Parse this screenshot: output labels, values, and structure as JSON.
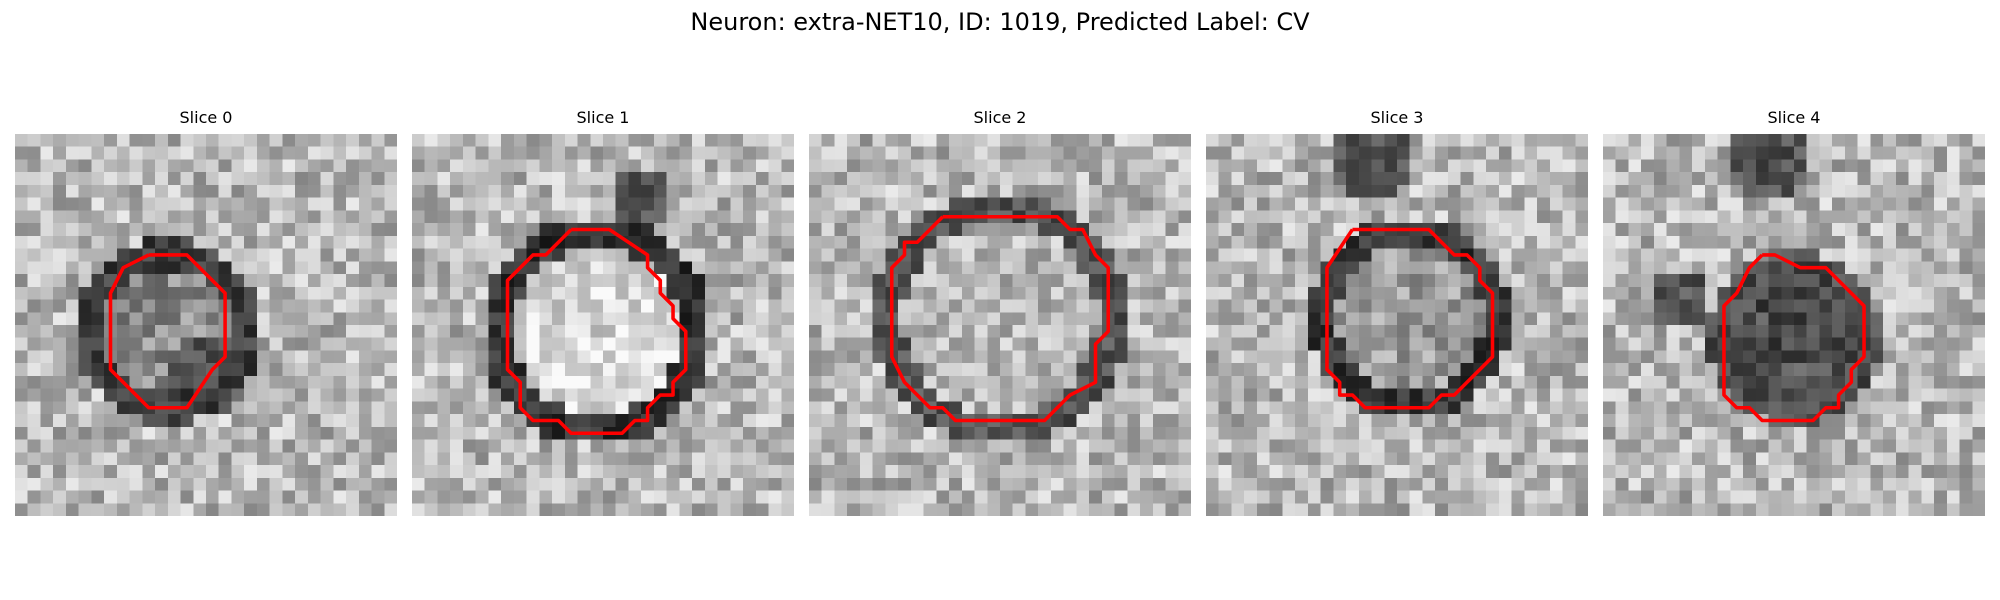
{
  "figure": {
    "title": "Neuron: extra-NET10, ID: 1019, Predicted Label: CV"
  },
  "contour_color": "#ff0000",
  "panels": [
    {
      "title": "Slice 0",
      "contour": [
        [
          10.5,
          9.5
        ],
        [
          13.5,
          9.5
        ],
        [
          15.5,
          11.5
        ],
        [
          16.5,
          12.5
        ],
        [
          16.5,
          17.5
        ],
        [
          15.5,
          18.5
        ],
        [
          13.5,
          21.5
        ],
        [
          10.5,
          21.5
        ],
        [
          8.5,
          19.5
        ],
        [
          7.5,
          18.5
        ],
        [
          7.5,
          12.5
        ],
        [
          8.5,
          10.5
        ]
      ]
    },
    {
      "title": "Slice 1",
      "contour": [
        [
          12.5,
          7.5
        ],
        [
          15.5,
          7.5
        ],
        [
          18.5,
          9.5
        ],
        [
          18.5,
          10.5
        ],
        [
          19.5,
          11.5
        ],
        [
          19.5,
          12.5
        ],
        [
          20.5,
          13.5
        ],
        [
          20.5,
          14.5
        ],
        [
          21.5,
          15.5
        ],
        [
          21.5,
          18.5
        ],
        [
          20.5,
          19.5
        ],
        [
          20.5,
          20.5
        ],
        [
          19.5,
          20.5
        ],
        [
          18.5,
          21.5
        ],
        [
          18.5,
          22.5
        ],
        [
          17.5,
          22.5
        ],
        [
          16.5,
          23.5
        ],
        [
          12.5,
          23.5
        ],
        [
          11.5,
          22.5
        ],
        [
          9.5,
          22.5
        ],
        [
          8.5,
          21.5
        ],
        [
          8.5,
          19.5
        ],
        [
          7.5,
          18.5
        ],
        [
          7.5,
          11.5
        ],
        [
          9.5,
          9.5
        ],
        [
          10.5,
          9.5
        ],
        [
          11.5,
          8.5
        ]
      ]
    },
    {
      "title": "Slice 2",
      "contour": [
        [
          10.5,
          6.5
        ],
        [
          19.5,
          6.5
        ],
        [
          20.5,
          7.5
        ],
        [
          21.5,
          7.5
        ],
        [
          22.5,
          9.5
        ],
        [
          23.5,
          10.5
        ],
        [
          23.5,
          15.5
        ],
        [
          22.5,
          16.5
        ],
        [
          22.5,
          19.5
        ],
        [
          20.5,
          20.5
        ],
        [
          19.5,
          21.5
        ],
        [
          18.5,
          22.5
        ],
        [
          11.5,
          22.5
        ],
        [
          10.5,
          21.5
        ],
        [
          9.5,
          21.5
        ],
        [
          7.5,
          19.5
        ],
        [
          6.5,
          17.5
        ],
        [
          6.5,
          10.5
        ],
        [
          7.5,
          9.5
        ],
        [
          7.5,
          8.5
        ],
        [
          8.5,
          8.5
        ]
      ]
    },
    {
      "title": "Slice 3",
      "contour": [
        [
          11.5,
          7.5
        ],
        [
          17.5,
          7.5
        ],
        [
          19.5,
          9.5
        ],
        [
          20.5,
          9.5
        ],
        [
          21.5,
          10.5
        ],
        [
          21.5,
          11.5
        ],
        [
          22.5,
          12.5
        ],
        [
          22.5,
          17.5
        ],
        [
          20.5,
          19.5
        ],
        [
          19.5,
          20.5
        ],
        [
          18.5,
          20.5
        ],
        [
          17.5,
          21.5
        ],
        [
          12.5,
          21.5
        ],
        [
          11.5,
          20.5
        ],
        [
          10.5,
          20.5
        ],
        [
          10.5,
          19.5
        ],
        [
          9.5,
          18.5
        ],
        [
          9.5,
          10.5
        ]
      ]
    },
    {
      "title": "Slice 4",
      "contour": [
        [
          12.5,
          9.5
        ],
        [
          13.5,
          9.5
        ],
        [
          15.5,
          10.5
        ],
        [
          17.5,
          10.5
        ],
        [
          20.5,
          13.5
        ],
        [
          20.5,
          17.5
        ],
        [
          19.5,
          18.5
        ],
        [
          19.5,
          19.5
        ],
        [
          18.5,
          20.5
        ],
        [
          18.5,
          21.5
        ],
        [
          17.5,
          21.5
        ],
        [
          16.5,
          22.5
        ],
        [
          12.5,
          22.5
        ],
        [
          11.5,
          21.5
        ],
        [
          10.5,
          21.5
        ],
        [
          9.5,
          20.5
        ],
        [
          9.5,
          19.5
        ],
        [
          9.5,
          17.5
        ],
        [
          9.5,
          13.5
        ],
        [
          10.5,
          12.5
        ],
        [
          11.5,
          10.5
        ]
      ]
    }
  ]
}
